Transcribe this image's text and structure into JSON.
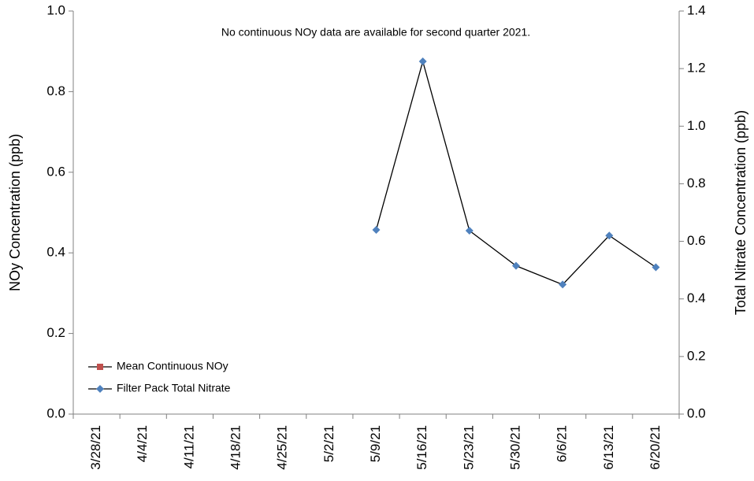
{
  "chart_data": {
    "type": "line",
    "annotation": "No continuous NOy data are available for second quarter 2021.",
    "y_label": "NOy Concentration (ppb)",
    "y2_label": "Total Nitrate Concentration (ppb)",
    "categories": [
      "3/28/21",
      "4/4/21",
      "4/11/21",
      "4/18/21",
      "4/25/21",
      "5/2/21",
      "5/9/21",
      "5/16/21",
      "5/23/21",
      "5/30/21",
      "6/6/21",
      "6/13/21",
      "6/20/21"
    ],
    "series": [
      {
        "name": "Mean Continuous NOy",
        "color": "#c0504d",
        "line_color": "#000000",
        "axis": "y",
        "values": [
          null,
          null,
          null,
          null,
          null,
          null,
          null,
          null,
          null,
          null,
          null,
          null,
          null
        ]
      },
      {
        "name": "Filter Pack Total Nitrate",
        "color": "#4f81bd",
        "line_color": "#000000",
        "axis": "y2",
        "values": [
          null,
          null,
          null,
          null,
          null,
          null,
          0.64,
          1.225,
          0.637,
          0.515,
          0.45,
          0.62,
          0.51
        ]
      }
    ],
    "ylim": [
      0,
      1.0
    ],
    "yticks": [
      {
        "value": 0,
        "label": "0.0"
      },
      0.2,
      0.4,
      0.6,
      0.8,
      {
        "value": 1,
        "label": "1.0"
      }
    ],
    "y2lim": [
      0,
      1.4
    ],
    "y2ticks": [
      {
        "value": 0,
        "label": "0.0"
      },
      0.2,
      0.4,
      0.6,
      0.8,
      {
        "value": 1,
        "label": "1.0"
      },
      1.2,
      1.4
    ],
    "legend": "lower left",
    "grid": false
  }
}
